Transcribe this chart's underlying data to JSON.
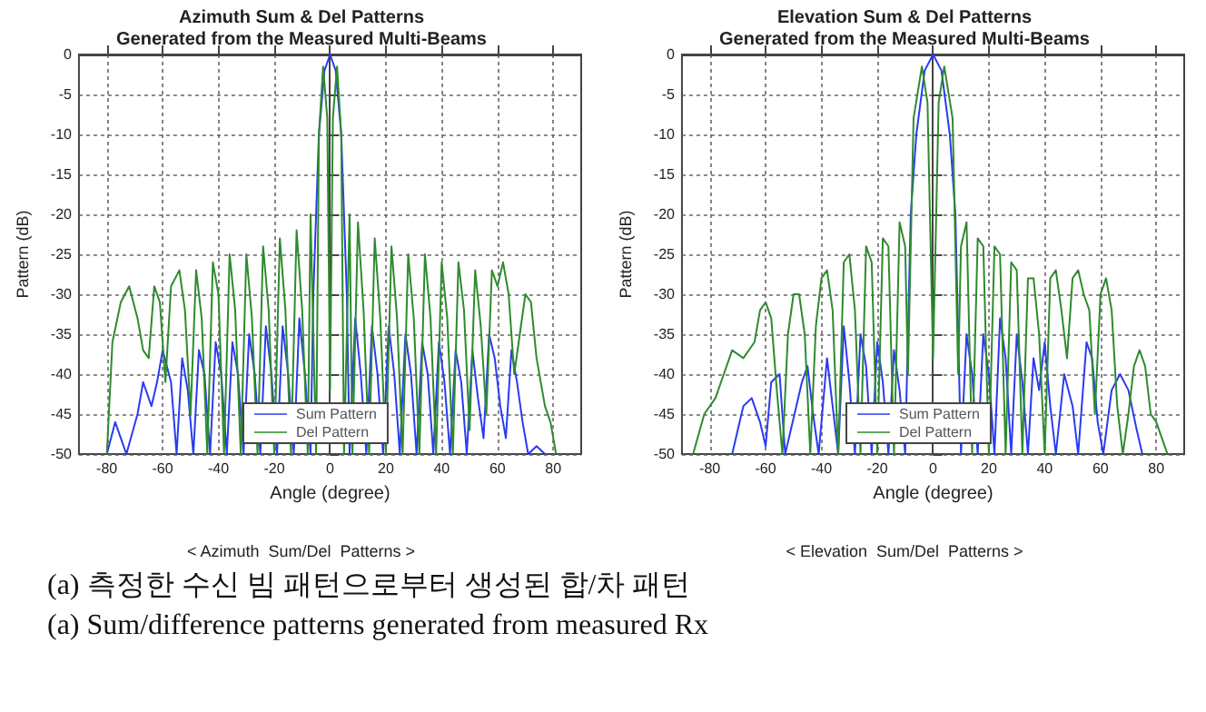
{
  "chart_data": [
    {
      "type": "line",
      "title": "Azimuth Sum & Del Patterns",
      "subtitle": "Generated from the Measured Multi-Beams",
      "xlabel": "Angle (degree)",
      "ylabel": "Pattern (dB)",
      "xlim": [
        -90,
        90
      ],
      "xticks": [
        -80,
        -60,
        -40,
        -20,
        0,
        20,
        40,
        60,
        80
      ],
      "ylim": [
        -50,
        0
      ],
      "yticks": [
        -50,
        -45,
        -40,
        -35,
        -30,
        -25,
        -20,
        -15,
        -10,
        -5,
        0
      ],
      "grid": true,
      "legend": "bottom",
      "marker": "none",
      "annotations": [
        "< Azimuth  Sum/Del  Patterns >",
        "(a) 측정한 수신 빔 패턴으로부터 생성된 합/차 패턴",
        "(a) Sum/difference patterns generated from measured Rx"
      ],
      "series": [
        {
          "name": "Sum Pattern",
          "color": "#2a3bf0",
          "x": [
            -80,
            -77,
            -75,
            -73,
            -69,
            -67,
            -64,
            -62,
            -60,
            -57,
            -55,
            -53,
            -51,
            -49,
            -47,
            -45,
            -43,
            -41,
            -39,
            -37,
            -35,
            -33,
            -31,
            -29,
            -27,
            -25,
            -23,
            -21,
            -19,
            -17,
            -15,
            -13,
            -11,
            -9,
            -7,
            -6,
            -5,
            -4,
            -2,
            0,
            2,
            4,
            5,
            6,
            7,
            9,
            11,
            13,
            15,
            17,
            19,
            21,
            23,
            25,
            27,
            29,
            31,
            33,
            35,
            37,
            39,
            41,
            43,
            45,
            47,
            49,
            51,
            53,
            55,
            57,
            59,
            61,
            63,
            65,
            67,
            69,
            71,
            74,
            77
          ],
          "values": [
            -50,
            -46,
            -48,
            -50,
            -45,
            -41,
            -44,
            -41,
            -37,
            -41,
            -50,
            -38,
            -42,
            -50,
            -37,
            -40,
            -50,
            -36,
            -40,
            -50,
            -36,
            -40,
            -50,
            -35,
            -40,
            -50,
            -34,
            -40,
            -50,
            -34,
            -40,
            -50,
            -33,
            -40,
            -50,
            -30,
            -20,
            -10,
            -2,
            0,
            -2,
            -10,
            -20,
            -30,
            -50,
            -33,
            -40,
            -50,
            -34,
            -40,
            -50,
            -34,
            -40,
            -50,
            -35,
            -40,
            -50,
            -36,
            -40,
            -50,
            -36,
            -41,
            -50,
            -37,
            -41,
            -50,
            -37,
            -43,
            -48,
            -35,
            -38,
            -44,
            -48,
            -37,
            -41,
            -46,
            -50,
            -49,
            -50
          ]
        },
        {
          "name": "Del Pattern",
          "color": "#2e8b2e",
          "x": [
            -80,
            -78,
            -75,
            -72,
            -69,
            -67,
            -65,
            -63,
            -61,
            -59,
            -57,
            -54,
            -52,
            -50,
            -48,
            -46,
            -44,
            -42,
            -40,
            -38,
            -36,
            -34,
            -32,
            -30,
            -28,
            -26,
            -24,
            -22,
            -20,
            -18,
            -16,
            -14,
            -12,
            -10,
            -8,
            -7,
            -6,
            -5,
            -4,
            -2.5,
            -1,
            0,
            1,
            2.5,
            4,
            5,
            6,
            7,
            8,
            10,
            12,
            14,
            16,
            18,
            20,
            22,
            24,
            26,
            28,
            30,
            32,
            34,
            36,
            38,
            40,
            42,
            44,
            46,
            48,
            50,
            52,
            54,
            56,
            58,
            60,
            62,
            64,
            66,
            68,
            70,
            72,
            74,
            77,
            79,
            81
          ],
          "values": [
            -50,
            -36,
            -31,
            -29,
            -33,
            -37,
            -38,
            -29,
            -31,
            -41,
            -29,
            -27,
            -32,
            -45,
            -27,
            -33,
            -50,
            -26,
            -30,
            -50,
            -25,
            -32,
            -50,
            -25,
            -33,
            -50,
            -24,
            -32,
            -50,
            -23,
            -32,
            -50,
            -22,
            -32,
            -50,
            -20,
            -35,
            -50,
            -10,
            -1.5,
            -8,
            -42,
            -8,
            -1.5,
            -10,
            -50,
            -35,
            -20,
            -50,
            -21,
            -32,
            -50,
            -23,
            -33,
            -50,
            -24,
            -33,
            -50,
            -25,
            -33,
            -50,
            -25,
            -33,
            -50,
            -26,
            -33,
            -50,
            -26,
            -32,
            -47,
            -27,
            -34,
            -45,
            -27,
            -29,
            -26,
            -30,
            -40,
            -35,
            -30,
            -31,
            -38,
            -44,
            -46,
            -50
          ]
        }
      ]
    },
    {
      "type": "line",
      "title": "Elevation Sum & Del Patterns",
      "subtitle": "Generated from the Measured Multi-Beams",
      "xlabel": "Angle (degree)",
      "ylabel": "Pattern (dB)",
      "xlim": [
        -90,
        90
      ],
      "xticks": [
        -80,
        -60,
        -40,
        -20,
        0,
        20,
        40,
        60,
        80
      ],
      "ylim": [
        -50,
        0
      ],
      "yticks": [
        -50,
        -45,
        -40,
        -35,
        -30,
        -25,
        -20,
        -15,
        -10,
        -5,
        0
      ],
      "grid": true,
      "legend": "bottom",
      "marker": "none",
      "annotations": [
        "< Elevation  Sum/Del  Patterns >"
      ],
      "series": [
        {
          "name": "Sum Pattern",
          "color": "#2a3bf0",
          "x": [
            -72,
            -68,
            -65,
            -62,
            -60,
            -58,
            -55,
            -53,
            -47,
            -45,
            -43,
            -41,
            -38,
            -36,
            -34,
            -32,
            -30,
            -28,
            -26,
            -24,
            -22,
            -20,
            -18,
            -16,
            -14,
            -12,
            -10,
            -8,
            -6,
            -3,
            0,
            3,
            6,
            8,
            10,
            12,
            14,
            16,
            18,
            20,
            22,
            24,
            26,
            28,
            30,
            32,
            34,
            36,
            38,
            40,
            42,
            44,
            47,
            50,
            52,
            55,
            57,
            59,
            61,
            64,
            67,
            70,
            73,
            75
          ],
          "values": [
            -50,
            -44,
            -43,
            -46,
            -49,
            -41,
            -40,
            -50,
            -41,
            -39,
            -45,
            -50,
            -38,
            -44,
            -50,
            -34,
            -41,
            -50,
            -35,
            -39,
            -50,
            -36,
            -41,
            -50,
            -37,
            -42,
            -50,
            -20,
            -10,
            -2,
            0,
            -2,
            -10,
            -20,
            -50,
            -35,
            -40,
            -50,
            -35,
            -40,
            -50,
            -33,
            -38,
            -50,
            -35,
            -41,
            -50,
            -38,
            -42,
            -36,
            -44,
            -50,
            -40,
            -44,
            -50,
            -36,
            -38,
            -46,
            -50,
            -42,
            -40,
            -42,
            -47,
            -50
          ]
        },
        {
          "name": "Del Pattern",
          "color": "#2e8b2e",
          "x": [
            -86,
            -82,
            -78,
            -75,
            -72,
            -68,
            -64,
            -62,
            -60,
            -58,
            -56,
            -54,
            -52,
            -50,
            -48,
            -46,
            -44,
            -42,
            -40,
            -38,
            -36,
            -34,
            -32,
            -30,
            -28,
            -26,
            -24,
            -22,
            -20,
            -18,
            -16,
            -14,
            -12,
            -10,
            -9,
            -7,
            -4,
            -2,
            0,
            2,
            4,
            7,
            9,
            10,
            12,
            14,
            16,
            18,
            20,
            22,
            24,
            26,
            28,
            30,
            32,
            34,
            36,
            38,
            40,
            42,
            44,
            46,
            48,
            50,
            52,
            54,
            56,
            58,
            60,
            62,
            64,
            66,
            68,
            70,
            72,
            74,
            76,
            78,
            80,
            82,
            84
          ],
          "values": [
            -50,
            -45,
            -43,
            -40,
            -37,
            -38,
            -36,
            -32,
            -31,
            -33,
            -42,
            -50,
            -35,
            -30,
            -30,
            -35,
            -50,
            -34,
            -28,
            -27,
            -32,
            -50,
            -26,
            -25,
            -32,
            -50,
            -24,
            -26,
            -50,
            -23,
            -24,
            -50,
            -21,
            -24,
            -40,
            -8,
            -1.5,
            -6,
            -38,
            -6,
            -1.5,
            -8,
            -40,
            -24,
            -21,
            -50,
            -23,
            -24,
            -50,
            -24,
            -25,
            -50,
            -26,
            -27,
            -50,
            -28,
            -28,
            -35,
            -50,
            -28,
            -27,
            -32,
            -38,
            -28,
            -27,
            -30,
            -32,
            -45,
            -30,
            -28,
            -32,
            -44,
            -50,
            -45,
            -39,
            -37,
            -39,
            -45,
            -46,
            -48,
            -50
          ]
        }
      ]
    }
  ]
}
